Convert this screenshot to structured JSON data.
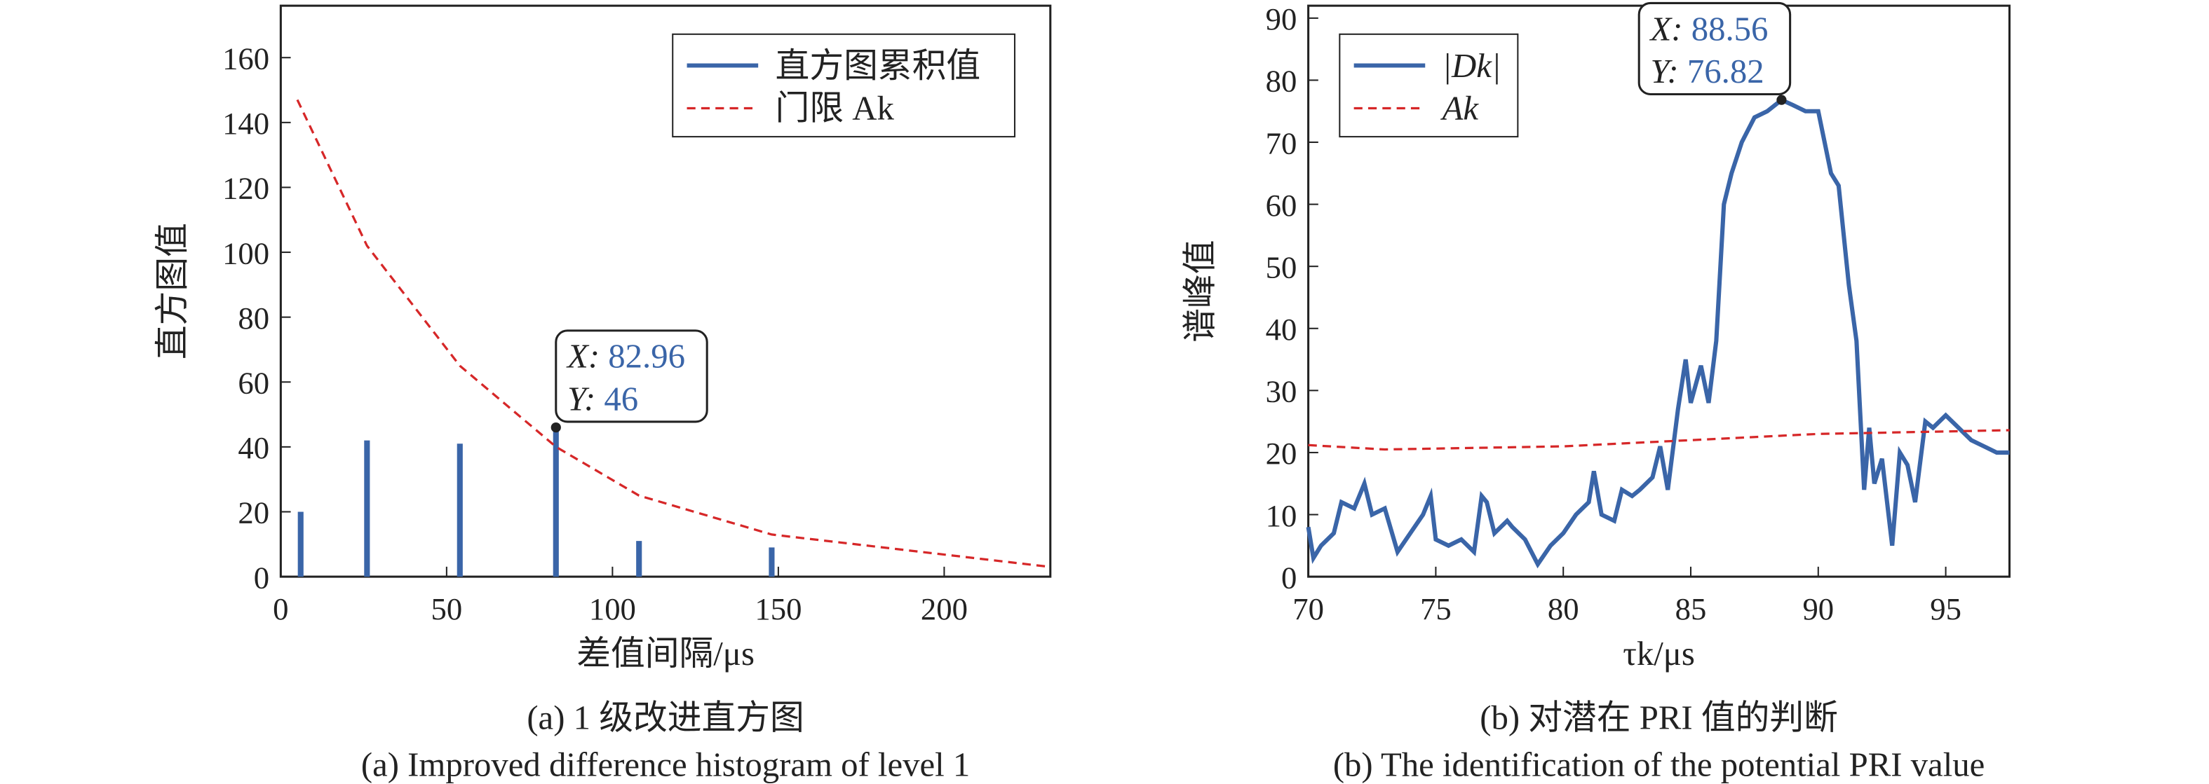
{
  "chart_data": [
    {
      "type": "bar",
      "caption": "(a) 1 级改进直方图",
      "caption_en": "(a) Improved difference histogram of level 1",
      "xlabel": "差值间隔/μs",
      "ylabel": "直方图值",
      "xlim": [
        0,
        232
      ],
      "ylim": [
        0,
        176
      ],
      "xticks": [
        0,
        50,
        100,
        150,
        200
      ],
      "yticks": [
        0,
        20,
        40,
        60,
        80,
        100,
        120,
        140,
        160
      ],
      "legend": "upper right",
      "series": [
        {
          "name": "直方图累积值",
          "color": "#3a65a8",
          "style": "stem",
          "x": [
            6,
            26,
            54,
            82.96,
            108,
            148
          ],
          "values": [
            20,
            42,
            41,
            46,
            11,
            9
          ]
        },
        {
          "name": "门限 Ak",
          "color": "#d62728",
          "style": "dashed",
          "x": [
            5,
            26,
            54,
            83,
            108,
            148,
            232
          ],
          "values": [
            147,
            102,
            65,
            40,
            25,
            13,
            3
          ]
        }
      ],
      "datatip": {
        "x_label": "X:",
        "x": 82.96,
        "y_label": "Y:",
        "y": 46
      }
    },
    {
      "type": "line",
      "caption": "(b) 对潜在 PRI 值的判断",
      "caption_en": "(b) The identification of the potential PRI value",
      "xlabel": "τk/μs",
      "ylabel": "谱峰值",
      "xlim": [
        70,
        97.5
      ],
      "ylim": [
        0,
        92
      ],
      "xticks": [
        70,
        75,
        80,
        85,
        90,
        95
      ],
      "yticks": [
        0,
        10,
        20,
        30,
        40,
        50,
        60,
        70,
        80,
        90
      ],
      "legend": "upper left",
      "series": [
        {
          "name": "|Dk|",
          "color": "#3a65a8",
          "style": "solid",
          "x": [
            70,
            70.2,
            70.5,
            71,
            71.3,
            71.8,
            72.2,
            72.5,
            73,
            73.5,
            74,
            74.5,
            74.8,
            75,
            75.5,
            76,
            76.5,
            76.8,
            77,
            77.3,
            77.8,
            78,
            78.5,
            79,
            79.5,
            80,
            80.5,
            81,
            81.2,
            81.5,
            82,
            82.3,
            82.7,
            83,
            83.5,
            83.8,
            84.1,
            84.5,
            84.8,
            85,
            85.4,
            85.7,
            86,
            86.3,
            86.6,
            87,
            87.5,
            88,
            88.56,
            89,
            89.5,
            90,
            90.5,
            90.8,
            91.2,
            91.5,
            91.8,
            92,
            92.2,
            92.5,
            92.7,
            92.9,
            93.2,
            93.5,
            93.8,
            94.2,
            94.5,
            95,
            95.5,
            96,
            96.5,
            97,
            97.5
          ],
          "values": [
            8,
            3,
            5,
            7,
            12,
            11,
            15,
            10,
            11,
            4,
            7,
            10,
            13,
            6,
            5,
            6,
            4,
            13,
            12,
            7,
            9,
            8,
            6,
            2,
            5,
            7,
            10,
            12,
            17,
            10,
            9,
            14,
            13,
            14,
            16,
            21,
            14,
            27,
            35,
            28,
            34,
            28,
            38,
            60,
            65,
            70,
            74,
            75,
            76.82,
            76,
            75,
            75,
            65,
            63,
            47,
            38,
            14,
            24,
            15,
            19,
            12,
            5,
            20,
            18,
            12,
            25,
            24,
            26,
            24,
            22,
            21,
            20,
            20
          ]
        },
        {
          "name": "Ak",
          "color": "#d62728",
          "style": "dashed",
          "x": [
            70,
            73,
            80,
            85,
            90,
            97.5
          ],
          "values": [
            21.2,
            20.5,
            21,
            22,
            23,
            23.6
          ]
        }
      ],
      "datatip": {
        "x_label": "X:",
        "x": 88.56,
        "y_label": "Y:",
        "y": 76.82
      }
    }
  ]
}
